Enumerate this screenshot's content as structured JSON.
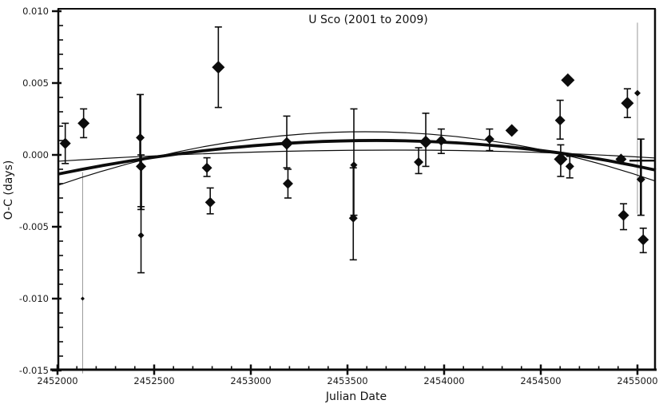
{
  "chart_data": {
    "type": "scatter",
    "title": "U Sco (2001 to 2009)",
    "xlabel": "Julian Date",
    "ylabel": "O-C (days)",
    "xlim": [
      2452000,
      2455095
    ],
    "ylim": [
      -0.015,
      0.01
    ],
    "x_major_ticks": [
      2452000,
      2452500,
      2453000,
      2453500,
      2454000,
      2454500,
      2455000
    ],
    "x_minor_step": 100,
    "y_major_ticks": [
      0.01,
      0.005,
      0.0,
      -0.005,
      -0.01,
      -0.015
    ],
    "y_minor_step": 0.001,
    "grid": false,
    "legend": null,
    "marker": "diamond",
    "colors": {
      "marker": "#0c0c0c",
      "error_bar": "#0c0c0c",
      "faint_error_bar": "#9a9a9a",
      "curve": "#0c0c0c",
      "axis": "#0c0c0c",
      "background": "#ffffff"
    },
    "points": [
      {
        "jd": 2452040,
        "oc": 0.0008,
        "size": 7,
        "err_hi": 0.0022,
        "err_lo": -0.0006
      },
      {
        "jd": 2452135,
        "oc": 0.0022,
        "size": 7.5,
        "err_hi": 0.0032,
        "err_lo": 0.0012
      },
      {
        "jd": 2452130,
        "oc": -0.01,
        "size": 2.5,
        "err_hi": -0.0012,
        "err_lo": -0.0152,
        "faint": true
      },
      {
        "jd": 2452428,
        "oc": 0.0012,
        "size": 5.5,
        "err_hi": 0.0042,
        "err_lo": -0.0008,
        "lw": 2.6
      },
      {
        "jd": 2452432,
        "oc": -0.0008,
        "size": 6.5,
        "err_hi": 0.0,
        "err_lo": -0.0038,
        "lw": 2.6
      },
      {
        "jd": 2452432,
        "oc": -0.0056,
        "size": 4,
        "err_hi": -0.0036,
        "err_lo": -0.0082
      },
      {
        "jd": 2452773,
        "oc": -0.0009,
        "size": 6.5,
        "err_hi": -0.0002,
        "err_lo": -0.0015
      },
      {
        "jd": 2452790,
        "oc": -0.0033,
        "size": 6.5,
        "err_hi": -0.0023,
        "err_lo": -0.0041
      },
      {
        "jd": 2452832,
        "oc": 0.0061,
        "size": 8,
        "err_hi": 0.0089,
        "err_lo": 0.0033
      },
      {
        "jd": 2453186,
        "oc": 0.0008,
        "size": 8,
        "err_hi": 0.0027,
        "err_lo": -0.0009
      },
      {
        "jd": 2453192,
        "oc": -0.002,
        "size": 6.5,
        "err_hi": -0.001,
        "err_lo": -0.003
      },
      {
        "jd": 2453533,
        "oc": -0.0007,
        "size": 4.5,
        "err_hi": 0.0032,
        "err_lo": -0.0042
      },
      {
        "jd": 2453530,
        "oc": -0.0044,
        "size": 5.5,
        "err_hi": -0.0009,
        "err_lo": -0.0073
      },
      {
        "jd": 2453868,
        "oc": -0.0005,
        "size": 6,
        "err_hi": 0.0005,
        "err_lo": -0.0013
      },
      {
        "jd": 2453905,
        "oc": 0.0009,
        "size": 8,
        "err_hi": 0.0029,
        "err_lo": -0.0008
      },
      {
        "jd": 2453985,
        "oc": 0.001,
        "size": 6.5,
        "err_hi": 0.0018,
        "err_lo": 0.0001
      },
      {
        "jd": 2454235,
        "oc": 0.0011,
        "size": 6,
        "err_hi": 0.0018,
        "err_lo": 0.0003
      },
      {
        "jd": 2454350,
        "oc": 0.0017,
        "size": 8,
        "err_hi": null,
        "err_lo": null
      },
      {
        "jd": 2454600,
        "oc": 0.0024,
        "size": 6.5,
        "err_hi": 0.0038,
        "err_lo": 0.0011
      },
      {
        "jd": 2454640,
        "oc": 0.0052,
        "size": 8.5,
        "err_hi": null,
        "err_lo": null
      },
      {
        "jd": 2454603,
        "oc": -0.0003,
        "size": 8.5,
        "err_hi": 0.0007,
        "err_lo": -0.0015
      },
      {
        "jd": 2454650,
        "oc": -0.0008,
        "size": 5.5,
        "err_hi": -0.0001,
        "err_lo": -0.0016
      },
      {
        "jd": 2454915,
        "oc": -0.0003,
        "size": 7,
        "err_hi": null,
        "err_lo": null
      },
      {
        "jd": 2454948,
        "oc": 0.0036,
        "size": 8,
        "err_hi": 0.0046,
        "err_lo": 0.0026
      },
      {
        "jd": 2455000,
        "oc": 0.0043,
        "size": 4,
        "err_hi": 0.0092,
        "err_lo": -0.0041,
        "faint": true
      },
      {
        "jd": 2455018,
        "oc": -0.0017,
        "size": 5.5,
        "err_hi": 0.0011,
        "err_lo": -0.0042,
        "lw": 2.6
      },
      {
        "jd": 2454928,
        "oc": -0.0042,
        "size": 7,
        "err_hi": -0.0034,
        "err_lo": -0.0052
      },
      {
        "jd": 2455030,
        "oc": -0.0059,
        "size": 7,
        "err_hi": -0.0051,
        "err_lo": -0.0068
      }
    ],
    "extra_segments": [
      {
        "type": "hline",
        "oc": -0.0004,
        "jd1": 2454959,
        "jd2": 2455095,
        "width": 2.4
      }
    ],
    "curves": [
      {
        "name": "best-fit-quadratic",
        "width": 3.8,
        "p0": [
          2452004,
          -0.00133
        ],
        "peak": [
          2453603,
          0.001
        ],
        "p1": [
          2455095,
          -0.00106
        ]
      },
      {
        "name": "sigma-curve-flat",
        "width": 1.2,
        "p0": [
          2452004,
          -0.00044
        ],
        "peak": [
          2453603,
          0.00033
        ],
        "p1": [
          2455095,
          -0.00022
        ]
      },
      {
        "name": "sigma-curve-steep",
        "width": 1.2,
        "p0": [
          2452004,
          -0.00211
        ],
        "peak": [
          2453562,
          0.00161
        ],
        "p1": [
          2455095,
          -0.00183
        ]
      }
    ]
  }
}
